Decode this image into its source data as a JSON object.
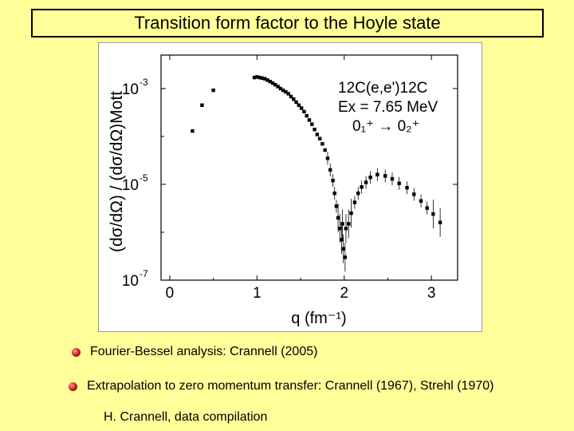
{
  "title": "Transition form factor to the Hoyle state",
  "bullets": [
    "Fourier-Bessel analysis: Crannell (2005)",
    "Extrapolation to zero momentum transfer: Crannell (1967), Strehl (1970)"
  ],
  "credit": "H. Crannell, data compilation",
  "colors": {
    "background": "#ffff99",
    "bullet": "#c21a1a",
    "marker": "#000000"
  },
  "chart_data": {
    "type": "scatter",
    "xlabel": "q (fm⁻¹)",
    "ylabel": "(dσ/dΩ) / (dσ/dΩ)Mott",
    "xlim": [
      -0.1,
      3.3
    ],
    "ylim": [
      1e-07,
      0.005
    ],
    "yscale": "log",
    "xticks": [
      0,
      1,
      2,
      3
    ],
    "yticks": [
      0.001,
      1e-05,
      1e-07
    ],
    "annotation": {
      "reaction": "12C(e,e')12C",
      "energy": "Ex = 7.65 MeV",
      "transition": "0₁⁺ → 0₂⁺"
    },
    "series": [
      {
        "points": [
          [
            0.26,
            0.00013
          ],
          [
            0.37,
            0.00045
          ],
          [
            0.5,
            0.00092
          ],
          [
            0.97,
            0.0017
          ],
          [
            1.0,
            0.00175
          ],
          [
            1.03,
            0.0017
          ],
          [
            1.06,
            0.00165
          ],
          [
            1.09,
            0.0016
          ],
          [
            1.12,
            0.0015
          ],
          [
            1.15,
            0.0014
          ],
          [
            1.18,
            0.0013
          ],
          [
            1.21,
            0.0012
          ],
          [
            1.24,
            0.0011
          ],
          [
            1.27,
            0.001
          ],
          [
            1.3,
            0.00092
          ],
          [
            1.33,
            0.00085
          ],
          [
            1.36,
            0.00078
          ],
          [
            1.39,
            0.00068
          ],
          [
            1.42,
            0.0006
          ],
          [
            1.45,
            0.00052
          ],
          [
            1.48,
            0.00045
          ],
          [
            1.51,
            0.00039
          ],
          [
            1.54,
            0.00033
          ],
          [
            1.57,
            0.00027
          ],
          [
            1.6,
            0.00022
          ],
          [
            1.63,
            0.00018
          ],
          [
            1.66,
            0.00014
          ],
          [
            1.69,
            0.00011
          ],
          [
            1.72,
            9e-05
          ],
          [
            1.75,
            7e-05
          ],
          [
            1.78,
            5.2e-05
          ],
          [
            1.81,
            3.5e-05
          ],
          [
            1.84,
            2e-05
          ],
          [
            1.87,
            1.2e-05
          ],
          [
            1.89,
            6.5e-06
          ],
          [
            1.91,
            3.5e-06
          ],
          [
            1.93,
            2e-06
          ],
          [
            1.95,
            1.2e-06
          ],
          [
            1.97,
            7e-07
          ],
          [
            1.99,
            4.5e-07
          ],
          [
            2.01,
            3e-07
          ],
          [
            1.98,
            1.5e-06
          ],
          [
            2.02,
            1.2e-06
          ],
          [
            2.05,
            1.5e-06
          ],
          [
            2.08,
            2.5e-06
          ],
          [
            2.12,
            4.2e-06
          ],
          [
            2.16,
            6.5e-06
          ],
          [
            2.2,
            8.8e-06
          ],
          [
            2.25,
            1.1e-05
          ],
          [
            2.3,
            1.4e-05
          ],
          [
            2.38,
            1.6e-05
          ],
          [
            2.47,
            1.5e-05
          ],
          [
            2.55,
            1.3e-05
          ],
          [
            2.63,
            1.05e-05
          ],
          [
            2.72,
            8.5e-06
          ],
          [
            2.8,
            6.2e-06
          ],
          [
            2.88,
            4.5e-06
          ],
          [
            2.95,
            3.2e-06
          ],
          [
            3.02,
            2.4e-06
          ],
          [
            3.1,
            1.6e-06
          ]
        ]
      }
    ]
  }
}
